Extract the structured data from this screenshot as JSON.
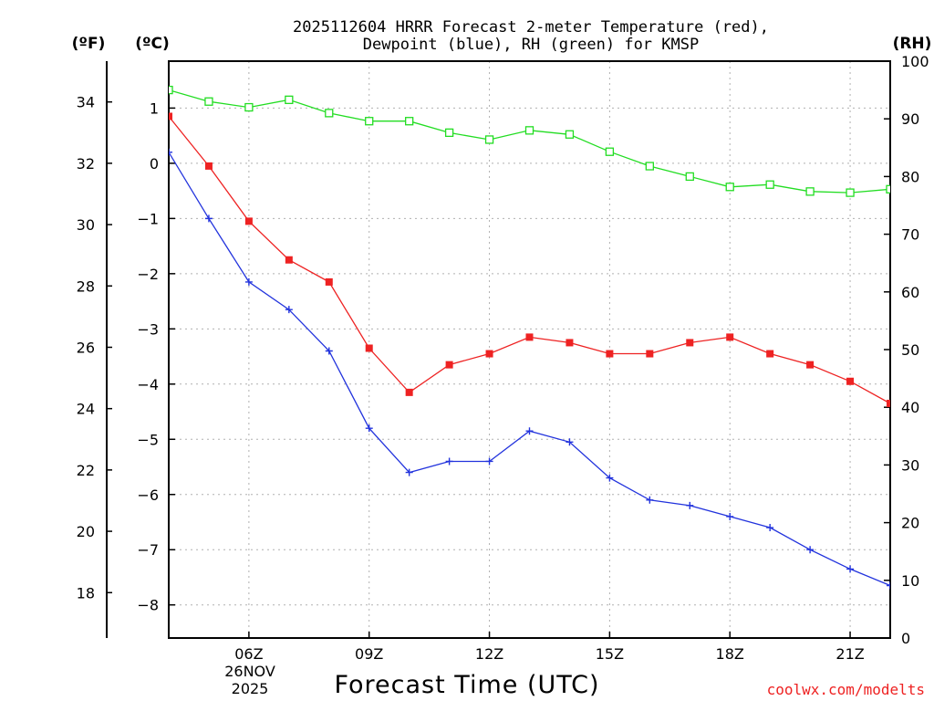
{
  "chart_data": {
    "type": "line",
    "title_lines": [
      "2025112604 HRRR Forecast 2-meter Temperature (red),",
      "Dewpoint (blue), RH (green) for KMSP"
    ],
    "axis_units": {
      "fahrenheit": "(ºF)",
      "celsius": "(ºC)",
      "rh": "(RH)"
    },
    "xlabel": "Forecast Time (UTC)",
    "x_hours": [
      4,
      5,
      6,
      7,
      8,
      9,
      10,
      11,
      12,
      13,
      14,
      15,
      16,
      17,
      18,
      19,
      20,
      21,
      22
    ],
    "xlim": [
      4,
      22
    ],
    "x_ticks": [
      {
        "hour": 6,
        "label": "06Z"
      },
      {
        "hour": 9,
        "label": "09Z"
      },
      {
        "hour": 12,
        "label": "12Z"
      },
      {
        "hour": 15,
        "label": "15Z"
      },
      {
        "hour": 18,
        "label": "18Z"
      },
      {
        "hour": 21,
        "label": "21Z"
      }
    ],
    "date_label": [
      "26NOV",
      "2025"
    ],
    "celsius_range": [
      -8.6,
      1.85
    ],
    "celsius_ticks": [
      1,
      0,
      -1,
      -2,
      -3,
      -4,
      -5,
      -6,
      -7,
      -8
    ],
    "fahrenheit_ticks": [
      34,
      32,
      30,
      28,
      26,
      24,
      22,
      20,
      18
    ],
    "rh_range": [
      0,
      100
    ],
    "rh_ticks": [
      100,
      90,
      80,
      70,
      60,
      50,
      40,
      30,
      20,
      10,
      0
    ],
    "series": [
      {
        "name": "Temperature",
        "unit": "C",
        "color": "#ee2222",
        "marker": "filled-square",
        "values": [
          0.85,
          -0.05,
          -1.05,
          -1.75,
          -2.15,
          -3.35,
          -4.15,
          -3.65,
          -3.45,
          -3.15,
          -3.25,
          -3.45,
          -3.45,
          -3.25,
          -3.15,
          -3.45,
          -3.65,
          -3.95,
          -4.35
        ]
      },
      {
        "name": "Dewpoint",
        "unit": "C",
        "color": "#2233dd",
        "marker": "plus",
        "values": [
          0.2,
          -1.0,
          -2.15,
          -2.65,
          -3.4,
          -4.8,
          -5.6,
          -5.4,
          -5.4,
          -4.85,
          -5.05,
          -5.7,
          -6.1,
          -6.2,
          -6.4,
          -6.6,
          -7.0,
          -7.35,
          -7.65
        ]
      },
      {
        "name": "RH",
        "unit": "%",
        "color": "#22dd22",
        "marker": "open-square",
        "values": [
          95,
          93,
          92,
          93.3,
          91,
          89.6,
          89.6,
          87.6,
          86.4,
          88,
          87.3,
          84.3,
          81.8,
          80,
          78.2,
          78.6,
          77.4,
          77.2,
          77.8
        ]
      }
    ]
  },
  "credit": {
    "text": "coolwx.com/modelts",
    "color": "#ee2222"
  }
}
